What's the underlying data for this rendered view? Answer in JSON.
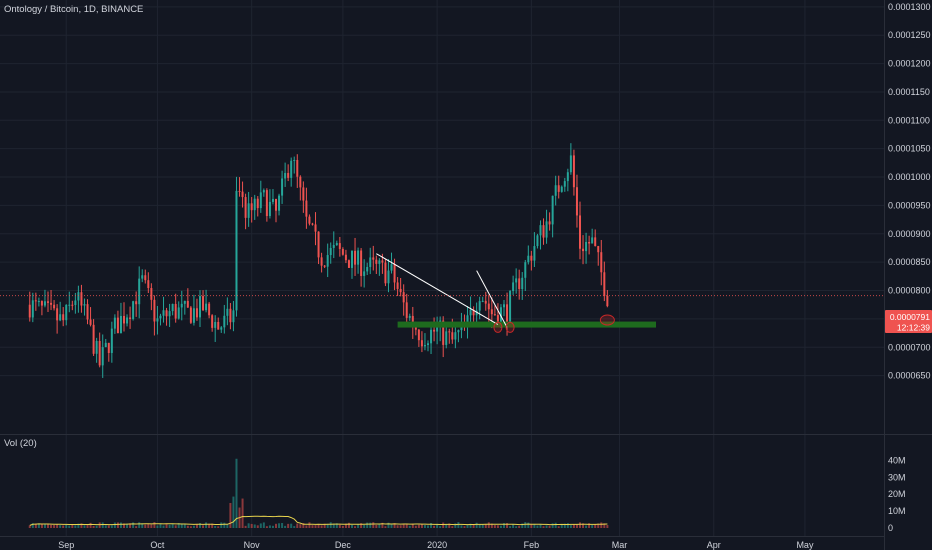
{
  "header": {
    "symbol_title": "Ontology / Bitcoin, 1D, BINANCE"
  },
  "volume_pane": {
    "title": "Vol (20)"
  },
  "colors": {
    "background": "#131722",
    "up": "#26a69a",
    "down": "#ef5350",
    "grid": "#1f2430",
    "text": "#d1d4dc",
    "support": "#1e6b1e",
    "trendline": "#ffffff",
    "ma": "#e8d44d",
    "circle": "#c62828"
  },
  "chart_data": {
    "type": "candlestick",
    "title": "Ontology / Bitcoin, 1D, BINANCE",
    "price_axis": {
      "ticks": [
        "0.0001300",
        "0.0001250",
        "0.0001200",
        "0.0001150",
        "0.0001100",
        "0.0001050",
        "0.0001000",
        "0.0000950",
        "0.0000900",
        "0.0000850",
        "0.0000800",
        "0.0000750",
        "0.0000700",
        "0.0000650"
      ],
      "range": [
        6e-05,
        0.0001305
      ]
    },
    "volume_axis": {
      "ticks": [
        "40M",
        "30M",
        "20M",
        "10M",
        "0"
      ],
      "range": [
        0,
        45
      ]
    },
    "time_axis": {
      "ticks": [
        "Sep",
        "Oct",
        "Nov",
        "Dec",
        "2020",
        "Feb",
        "Mar",
        "Apr",
        "May"
      ]
    },
    "last_price": {
      "value": "0.0000791",
      "countdown": "12:12:39"
    },
    "price_series": [
      {
        "d": "Aug 20",
        "c": 7.75e-05
      },
      {
        "d": "Aug 25",
        "c": 7.62e-05
      },
      {
        "d": "Aug 31",
        "c": 7.45e-05
      },
      {
        "d": "Sep 4",
        "c": 7.9e-05
      },
      {
        "d": "Sep 8",
        "c": 7.45e-05
      },
      {
        "d": "Sep 12",
        "c": 6.7e-05
      },
      {
        "d": "Sep 17",
        "c": 7.35e-05
      },
      {
        "d": "Sep 22",
        "c": 7.7e-05
      },
      {
        "d": "Sep 26",
        "c": 8.15e-05
      },
      {
        "d": "Oct 1",
        "c": 7.45e-05
      },
      {
        "d": "Oct 6",
        "c": 7.65e-05
      },
      {
        "d": "Oct 11",
        "c": 7.6e-05
      },
      {
        "d": "Oct 16",
        "c": 7.7e-05
      },
      {
        "d": "Oct 21",
        "c": 7.35e-05
      },
      {
        "d": "Oct 26",
        "c": 7.55e-05
      },
      {
        "d": "Oct 27",
        "c": 9.6e-05
      },
      {
        "d": "Oct 31",
        "c": 9.35e-05
      },
      {
        "d": "Nov 5",
        "c": 9.6e-05
      },
      {
        "d": "Nov 9",
        "c": 9.35e-05
      },
      {
        "d": "Nov 14",
        "c": 0.000104
      },
      {
        "d": "Nov 19",
        "c": 9.2e-05
      },
      {
        "d": "Nov 24",
        "c": 8.6e-05
      },
      {
        "d": "Nov 29",
        "c": 8.7e-05
      },
      {
        "d": "Dec 5",
        "c": 8.5e-05
      },
      {
        "d": "Dec 11",
        "c": 8.4e-05
      },
      {
        "d": "Dec 17",
        "c": 8.3e-05
      },
      {
        "d": "Dec 22",
        "c": 7.6e-05
      },
      {
        "d": "Dec 27",
        "c": 7.2e-05
      },
      {
        "d": "Jan 1",
        "c": 7.3e-05
      },
      {
        "d": "Jan 6",
        "c": 7.1e-05
      },
      {
        "d": "Jan 11",
        "c": 7.4e-05
      },
      {
        "d": "Jan 15",
        "c": 8e-05
      },
      {
        "d": "Jan 19",
        "c": 7.6e-05
      },
      {
        "d": "Jan 24",
        "c": 7.65e-05
      },
      {
        "d": "Jan 28",
        "c": 8.2e-05
      },
      {
        "d": "Feb 2",
        "c": 8.8e-05
      },
      {
        "d": "Feb 6",
        "c": 9.2e-05
      },
      {
        "d": "Feb 11",
        "c": 0.0001
      },
      {
        "d": "Feb 14",
        "c": 0.000103
      },
      {
        "d": "Feb 17",
        "c": 8.8e-05
      },
      {
        "d": "Feb 21",
        "c": 8.85e-05
      },
      {
        "d": "Feb 24",
        "c": 8.3e-05
      },
      {
        "d": "Feb 26",
        "c": 7.91e-05
      }
    ],
    "volume_spike": {
      "d": "Oct 27",
      "value_m": 41
    },
    "annotations": {
      "support_level": 7.4e-05,
      "trendlines": [
        {
          "from": {
            "d": "Dec 12",
            "p": 8.65e-05
          },
          "to": {
            "d": "Jan 21",
            "p": 7.4e-05
          }
        },
        {
          "from": {
            "d": "Jan 14",
            "p": 8.35e-05
          },
          "to": {
            "d": "Jan 24",
            "p": 7.35e-05
          }
        }
      ],
      "circles": [
        {
          "d": "Jan 21",
          "p": 7.35e-05
        },
        {
          "d": "Jan 25",
          "p": 7.35e-05
        },
        {
          "d": "Feb 26",
          "p": 7.48e-05
        }
      ]
    }
  }
}
